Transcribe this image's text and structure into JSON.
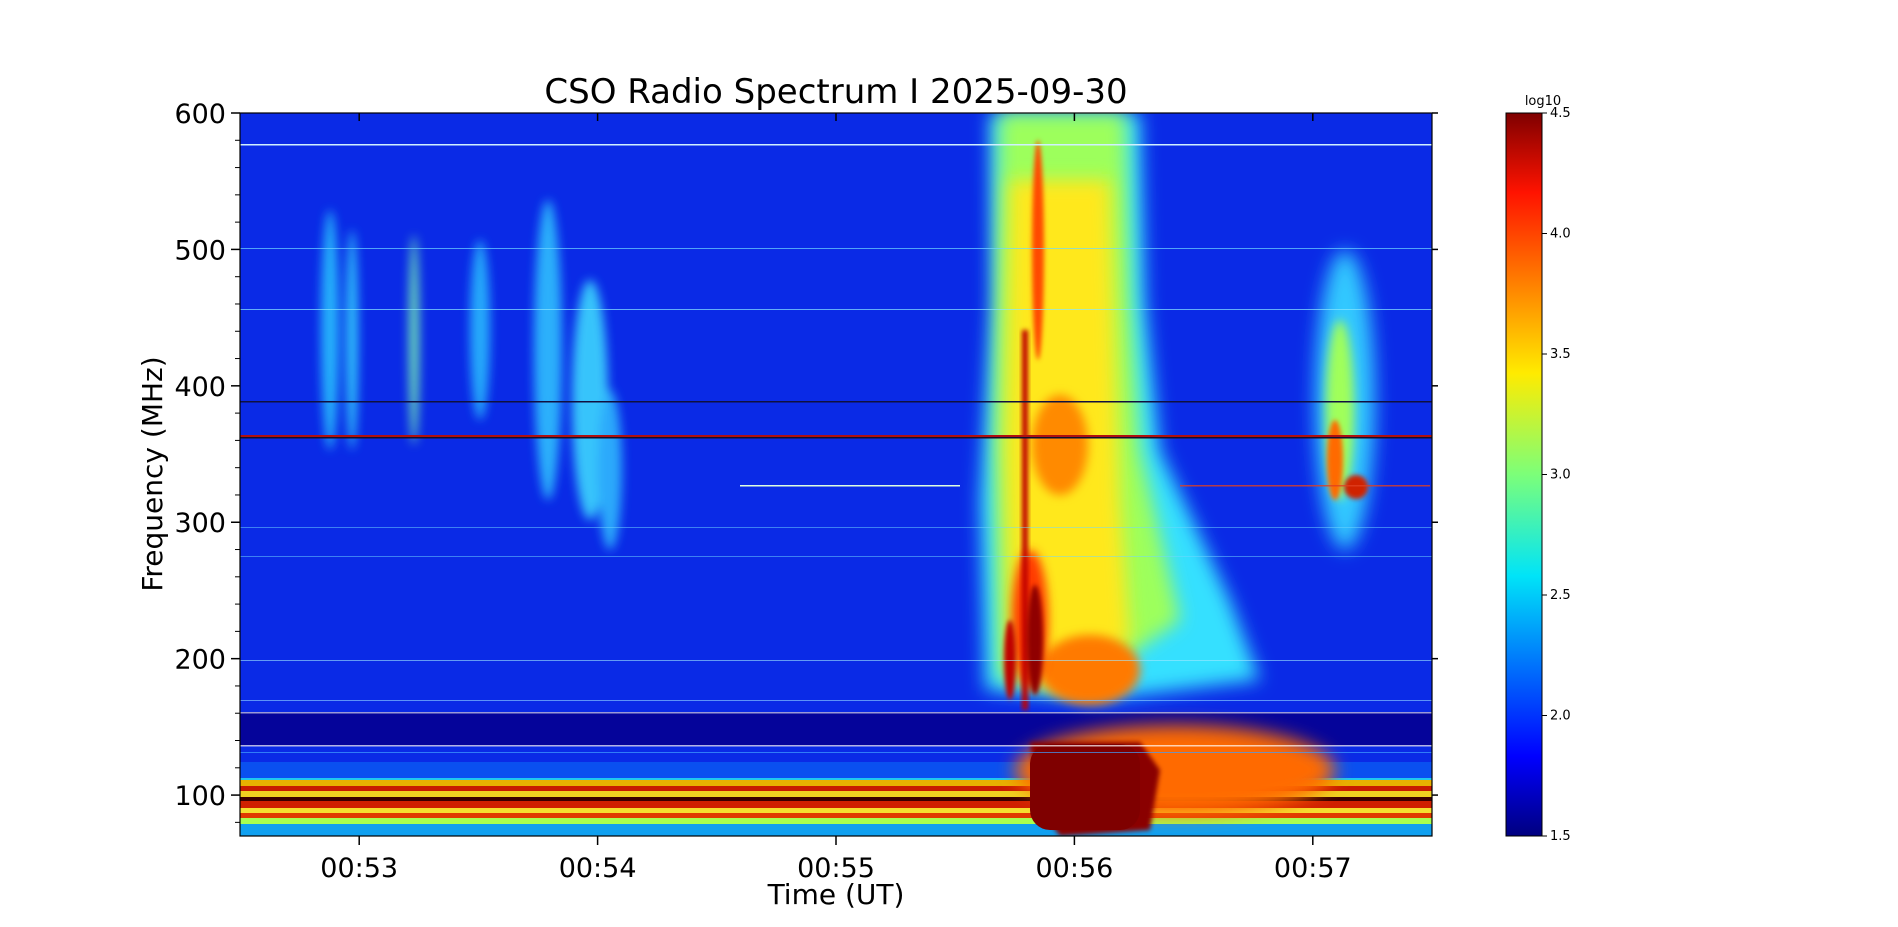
{
  "chart_data": {
    "type": "heatmap",
    "title": "CSO Radio Spectrum I 2025-09-30",
    "xlabel": "Time (UT)",
    "ylabel": "Frequency (MHz)",
    "x_range": [
      "00:52:30",
      "00:57:30"
    ],
    "x_ticks": [
      "00:53",
      "00:54",
      "00:55",
      "00:56",
      "00:57"
    ],
    "y_range": [
      70,
      600
    ],
    "y_ticks": [
      100,
      200,
      300,
      400,
      500,
      600
    ],
    "colorbar": {
      "label": "log10",
      "range": [
        1.5,
        4.5
      ],
      "ticks": [
        "1.5",
        "2.0",
        "2.5",
        "3.0",
        "3.5",
        "4.0",
        "4.5"
      ],
      "colormap": "jet"
    },
    "features": [
      {
        "time": "00:53:00",
        "freq_range": [
          350,
          540
        ],
        "level": 2.8
      },
      {
        "time": "00:53:15",
        "freq_range": [
          340,
          530
        ],
        "level": 3.1
      },
      {
        "time": "00:54:00",
        "freq_range": [
          270,
          520
        ],
        "level": 2.7
      },
      {
        "time_range": [
          "00:55:40",
          "00:56:20"
        ],
        "freq_range": [
          150,
          600
        ],
        "level": 3.5
      },
      {
        "time_range": [
          "00:55:50",
          "00:56:20"
        ],
        "freq_range": [
          70,
          135
        ],
        "level": 4.5
      },
      {
        "time": "00:57:10",
        "freq_range": [
          300,
          530
        ],
        "level": 3.2
      }
    ]
  }
}
